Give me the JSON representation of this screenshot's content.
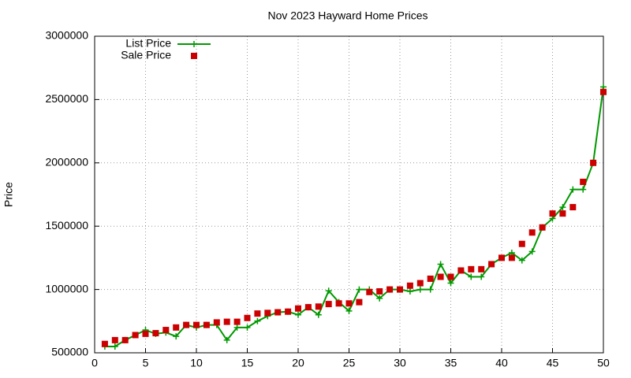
{
  "chart_data": {
    "type": "line",
    "title": "Nov 2023 Hayward Home Prices",
    "y_label": "Price",
    "x": [
      1,
      2,
      3,
      4,
      5,
      6,
      7,
      8,
      9,
      10,
      11,
      12,
      13,
      14,
      15,
      16,
      17,
      18,
      19,
      20,
      21,
      22,
      23,
      24,
      25,
      26,
      27,
      28,
      29,
      30,
      31,
      32,
      33,
      34,
      35,
      36,
      37,
      38,
      39,
      40,
      41,
      42,
      43,
      44,
      45,
      46,
      47,
      48,
      49,
      50
    ],
    "series": [
      {
        "name": "List Price",
        "color": "#009900",
        "style": "linespoints",
        "values": [
          550000,
          550000,
          600000,
          640000,
          680000,
          650000,
          660000,
          630000,
          720000,
          700000,
          720000,
          720000,
          600000,
          700000,
          700000,
          750000,
          790000,
          820000,
          825000,
          800000,
          860000,
          800000,
          990000,
          900000,
          830000,
          1000000,
          1000000,
          930000,
          1000000,
          1000000,
          985000,
          1000000,
          1000000,
          1200000,
          1050000,
          1150000,
          1100000,
          1100000,
          1200000,
          1250000,
          1290000,
          1230000,
          1300000,
          1490000,
          1560000,
          1650000,
          1790000,
          1790000,
          2000000,
          2600000
        ]
      },
      {
        "name": "Sale Price",
        "color": "#cc0000",
        "style": "points",
        "values": [
          570000,
          600000,
          600000,
          640000,
          650000,
          655000,
          680000,
          700000,
          720000,
          720000,
          720000,
          740000,
          745000,
          745000,
          775000,
          810000,
          815000,
          820000,
          825000,
          850000,
          860000,
          865000,
          885000,
          890000,
          890000,
          900000,
          980000,
          985000,
          1000000,
          1000000,
          1030000,
          1050000,
          1085000,
          1100000,
          1100000,
          1150000,
          1160000,
          1160000,
          1200000,
          1250000,
          1250000,
          1360000,
          1450000,
          1490000,
          1600000,
          1600000,
          1650000,
          1850000,
          2000000,
          2560000
        ]
      }
    ],
    "xlim": [
      0,
      50
    ],
    "xticks": [
      0,
      5,
      10,
      15,
      20,
      25,
      30,
      35,
      40,
      45,
      50
    ],
    "ylim": [
      500000,
      3000000
    ],
    "yticks": [
      500000,
      1000000,
      1500000,
      2000000,
      2500000,
      3000000
    ],
    "grid": true,
    "legend": "top-left"
  }
}
